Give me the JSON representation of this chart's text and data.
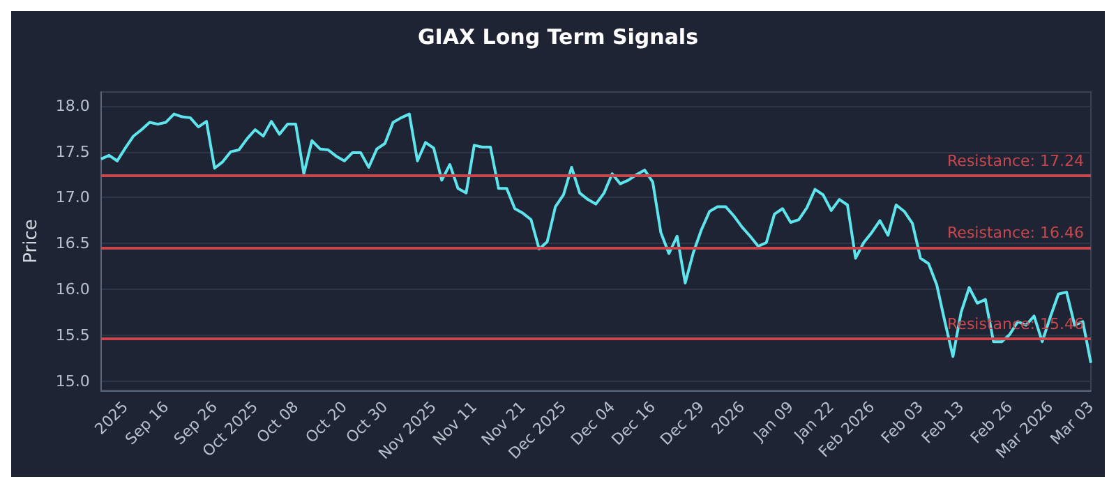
{
  "chart_data": {
    "type": "line",
    "title": "GIAX Long Term Signals",
    "ylabel": "Price",
    "categories": [
      null,
      null,
      null,
      "2025",
      null,
      null,
      null,
      null,
      "Sep 16",
      null,
      null,
      null,
      null,
      null,
      "Sep 26",
      null,
      null,
      null,
      null,
      "Oct 2025",
      null,
      null,
      null,
      null,
      "Oct 08",
      null,
      null,
      null,
      null,
      null,
      "Oct 20",
      null,
      null,
      null,
      null,
      "Oct 30",
      null,
      null,
      null,
      null,
      null,
      "Nov 2025",
      null,
      null,
      null,
      null,
      "Nov 11",
      null,
      null,
      null,
      null,
      null,
      "Nov 21",
      null,
      null,
      null,
      null,
      "Dec 2025",
      null,
      null,
      null,
      null,
      null,
      "Dec 04",
      null,
      null,
      null,
      null,
      "Dec 16",
      null,
      null,
      null,
      null,
      null,
      "Dec 29",
      null,
      null,
      null,
      null,
      "2026",
      null,
      null,
      null,
      null,
      null,
      "Jan 09",
      null,
      null,
      null,
      null,
      "Jan 22",
      null,
      null,
      null,
      null,
      "Feb 2026",
      null,
      null,
      null,
      null,
      null,
      "Feb 03",
      null,
      null,
      null,
      null,
      "Feb 13",
      null,
      null,
      null,
      null,
      null,
      "Feb 26",
      null,
      null,
      null,
      null,
      "Mar 2026",
      null,
      null,
      null,
      null,
      "Mar 03"
    ],
    "series": [
      {
        "color": "#5ee4ec",
        "values": [
          17.42,
          17.46,
          17.4,
          17.54,
          17.67,
          17.74,
          17.82,
          17.8,
          17.82,
          17.91,
          17.88,
          17.87,
          17.77,
          17.83,
          17.32,
          17.39,
          17.5,
          17.52,
          17.64,
          17.74,
          17.67,
          17.83,
          17.69,
          17.8,
          17.8,
          17.26,
          17.62,
          17.53,
          17.52,
          17.45,
          17.4,
          17.49,
          17.49,
          17.33,
          17.53,
          17.59,
          17.82,
          17.87,
          17.91,
          17.4,
          17.6,
          17.54,
          17.19,
          17.36,
          17.1,
          17.05,
          17.57,
          17.55,
          17.55,
          17.1,
          17.1,
          16.88,
          16.83,
          16.76,
          16.44,
          16.52,
          16.9,
          17.03,
          17.33,
          17.05,
          16.98,
          16.93,
          17.05,
          17.26,
          17.15,
          17.19,
          17.25,
          17.3,
          17.17,
          16.62,
          16.39,
          16.58,
          16.07,
          16.4,
          16.65,
          16.85,
          16.9,
          16.9,
          16.8,
          16.68,
          16.58,
          16.47,
          16.51,
          16.82,
          16.88,
          16.73,
          16.76,
          16.89,
          17.09,
          17.03,
          16.86,
          16.98,
          16.92,
          16.34,
          16.51,
          16.62,
          16.75,
          16.59,
          16.92,
          16.85,
          16.72,
          16.34,
          16.28,
          16.05,
          15.65,
          15.27,
          15.75,
          16.02,
          15.85,
          15.89,
          15.43,
          15.43,
          15.51,
          15.65,
          15.61,
          15.71,
          15.43,
          15.7,
          15.95,
          15.97,
          15.61,
          15.65,
          15.2
        ]
      }
    ],
    "ylim": [
      14.9,
      18.15
    ],
    "yticks": [
      {
        "value": 15,
        "label": "15.0"
      },
      {
        "value": 15.5,
        "label": "15.5"
      },
      {
        "value": 16,
        "label": "16.0"
      },
      {
        "value": 16.5,
        "label": "16.5"
      },
      {
        "value": 17,
        "label": "17.0"
      },
      {
        "value": 17.5,
        "label": "17.5"
      },
      {
        "value": 18,
        "label": "18.0"
      }
    ],
    "ref_lines": [
      {
        "axis": "y",
        "value": 17.24,
        "label": "Resistance: 17.24",
        "color": "#c8474d"
      },
      {
        "axis": "y",
        "value": 16.46,
        "label": "Resistance: 16.46",
        "color": "#c8474d"
      },
      {
        "axis": "y",
        "value": 15.46,
        "label": "Resistance: 15.46",
        "color": "#c8474d"
      }
    ],
    "grid": "y",
    "marker": "none",
    "line_style": "solid"
  }
}
